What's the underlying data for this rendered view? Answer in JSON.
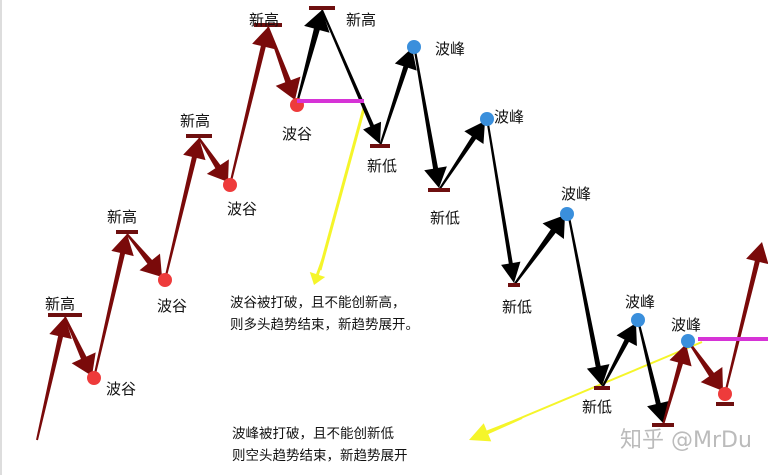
{
  "labels": {
    "new_high": "新高",
    "new_low": "新低",
    "trough": "波谷",
    "peak": "波峰"
  },
  "notes": {
    "uptrend_end": [
      "波谷被打破，且不能创新高，",
      "则多头趋势结束，新趋势展开。"
    ],
    "downtrend_end": [
      "波峰被打破，且不能创新低",
      "则空头趋势结束，新趋势展开"
    ]
  },
  "watermark": "知乎 @MrDu",
  "colors": {
    "uptrend": "#7a0a0a",
    "downtrend": "#000000",
    "trough_dot": "#ee3b3b",
    "peak_dot": "#3a8fdc",
    "break_line": "#d633d6",
    "pointer": "#f5f52a"
  }
}
